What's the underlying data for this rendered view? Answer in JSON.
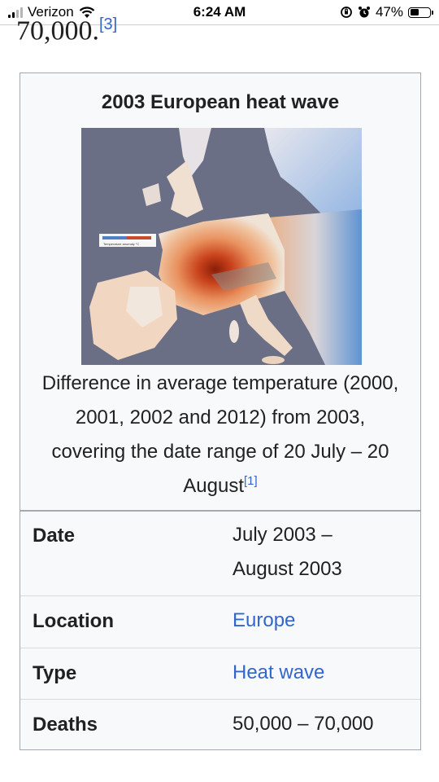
{
  "status_bar": {
    "carrier": "Verizon",
    "time": "6:24 AM",
    "battery_percent": "47%",
    "battery_level": 0.47,
    "icons": [
      "signal-bars-icon",
      "wifi-icon",
      "rotation-lock-icon",
      "alarm-icon",
      "battery-icon"
    ]
  },
  "clipped_text": {
    "text": "70,000.",
    "ref": "[3]"
  },
  "infobox": {
    "title": "2003 European heat wave",
    "image_legend_label": "Temperature anomaly °C",
    "caption": "Difference in average temperature (2000, 2001, 2002 and 2012) from 2003, covering the date range of 20 July – 20 August",
    "caption_ref": "[1]",
    "rows": [
      {
        "label": "Date",
        "value": "July 2003 – August 2003",
        "link": false
      },
      {
        "label": "Location",
        "value": "Europe",
        "link": true
      },
      {
        "label": "Type",
        "value": "Heat wave",
        "link": true
      },
      {
        "label": "Deaths",
        "value": "50,000 – 70,000",
        "link": false
      }
    ]
  },
  "colors": {
    "link": "#3366cc",
    "infobox_bg": "#f8f9fa",
    "infobox_border": "#a2a9b1",
    "text": "#202122"
  }
}
